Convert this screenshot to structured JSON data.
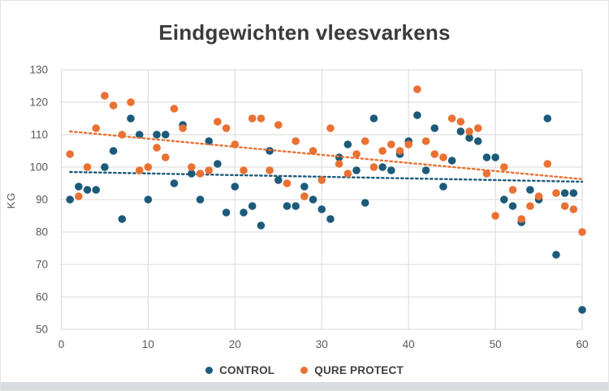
{
  "chart_data": {
    "type": "scatter",
    "title": "Eindgewichten vleesvarkens",
    "xlabel": "",
    "ylabel": "KG",
    "xlim": [
      0,
      60
    ],
    "ylim": [
      50,
      130
    ],
    "x_ticks": [
      0,
      10,
      20,
      30,
      40,
      50,
      60
    ],
    "y_ticks": [
      50,
      60,
      70,
      80,
      90,
      100,
      110,
      120,
      130
    ],
    "grid": true,
    "legend_position": "bottom",
    "x_values": [
      1,
      2,
      3,
      4,
      5,
      6,
      7,
      8,
      9,
      10,
      11,
      12,
      13,
      14,
      15,
      16,
      17,
      18,
      19,
      20,
      21,
      22,
      23,
      24,
      25,
      26,
      27,
      28,
      29,
      30,
      31,
      32,
      33,
      34,
      35,
      36,
      37,
      38,
      39,
      40,
      41,
      42,
      43,
      44,
      45,
      46,
      47,
      48,
      49,
      50,
      51,
      52,
      53,
      54,
      55,
      56,
      57,
      58,
      59,
      60
    ],
    "series": [
      {
        "name": "CONTROL",
        "color": "#1C5A7A",
        "values": [
          90,
          94,
          93,
          93,
          100,
          105,
          84,
          115,
          110,
          90,
          110,
          110,
          95,
          113,
          98,
          90,
          108,
          101,
          86,
          94,
          86,
          88,
          82,
          105,
          96,
          88,
          88,
          94,
          90,
          87,
          84,
          103,
          107,
          99,
          89,
          115,
          100,
          99,
          104,
          108,
          116,
          99,
          112,
          94,
          102,
          111,
          109,
          108,
          103,
          103,
          90,
          88,
          83,
          93,
          90,
          115,
          73,
          92,
          92,
          56
        ]
      },
      {
        "name": "QURE PROTECT",
        "color": "#E97132",
        "values": [
          104,
          91,
          100,
          112,
          122,
          119,
          110,
          120,
          99,
          100,
          106,
          103,
          118,
          112,
          100,
          98,
          99,
          114,
          112,
          107,
          99,
          115,
          115,
          99,
          113,
          95,
          108,
          91,
          105,
          96,
          112,
          101,
          98,
          104,
          108,
          100,
          105,
          107,
          105,
          107,
          124,
          108,
          104,
          103,
          115,
          114,
          111,
          112,
          98,
          85,
          100,
          93,
          84,
          88,
          91,
          101,
          92,
          88,
          87,
          80
        ]
      }
    ],
    "trendlines": [
      {
        "series": "CONTROL",
        "color": "#1C5A7A",
        "style": "dotted",
        "x_start": 1,
        "y_start": 98.5,
        "x_end": 60,
        "y_end": 95.5
      },
      {
        "series": "QURE PROTECT",
        "color": "#E97132",
        "style": "dotted",
        "x_start": 1,
        "y_start": 111.0,
        "x_end": 60,
        "y_end": 96.3
      }
    ],
    "colors": {
      "grid": "#D9D9D9",
      "axis_text": "#595959",
      "title_text": "#3B3B3B",
      "legend_text": "#404040"
    }
  }
}
